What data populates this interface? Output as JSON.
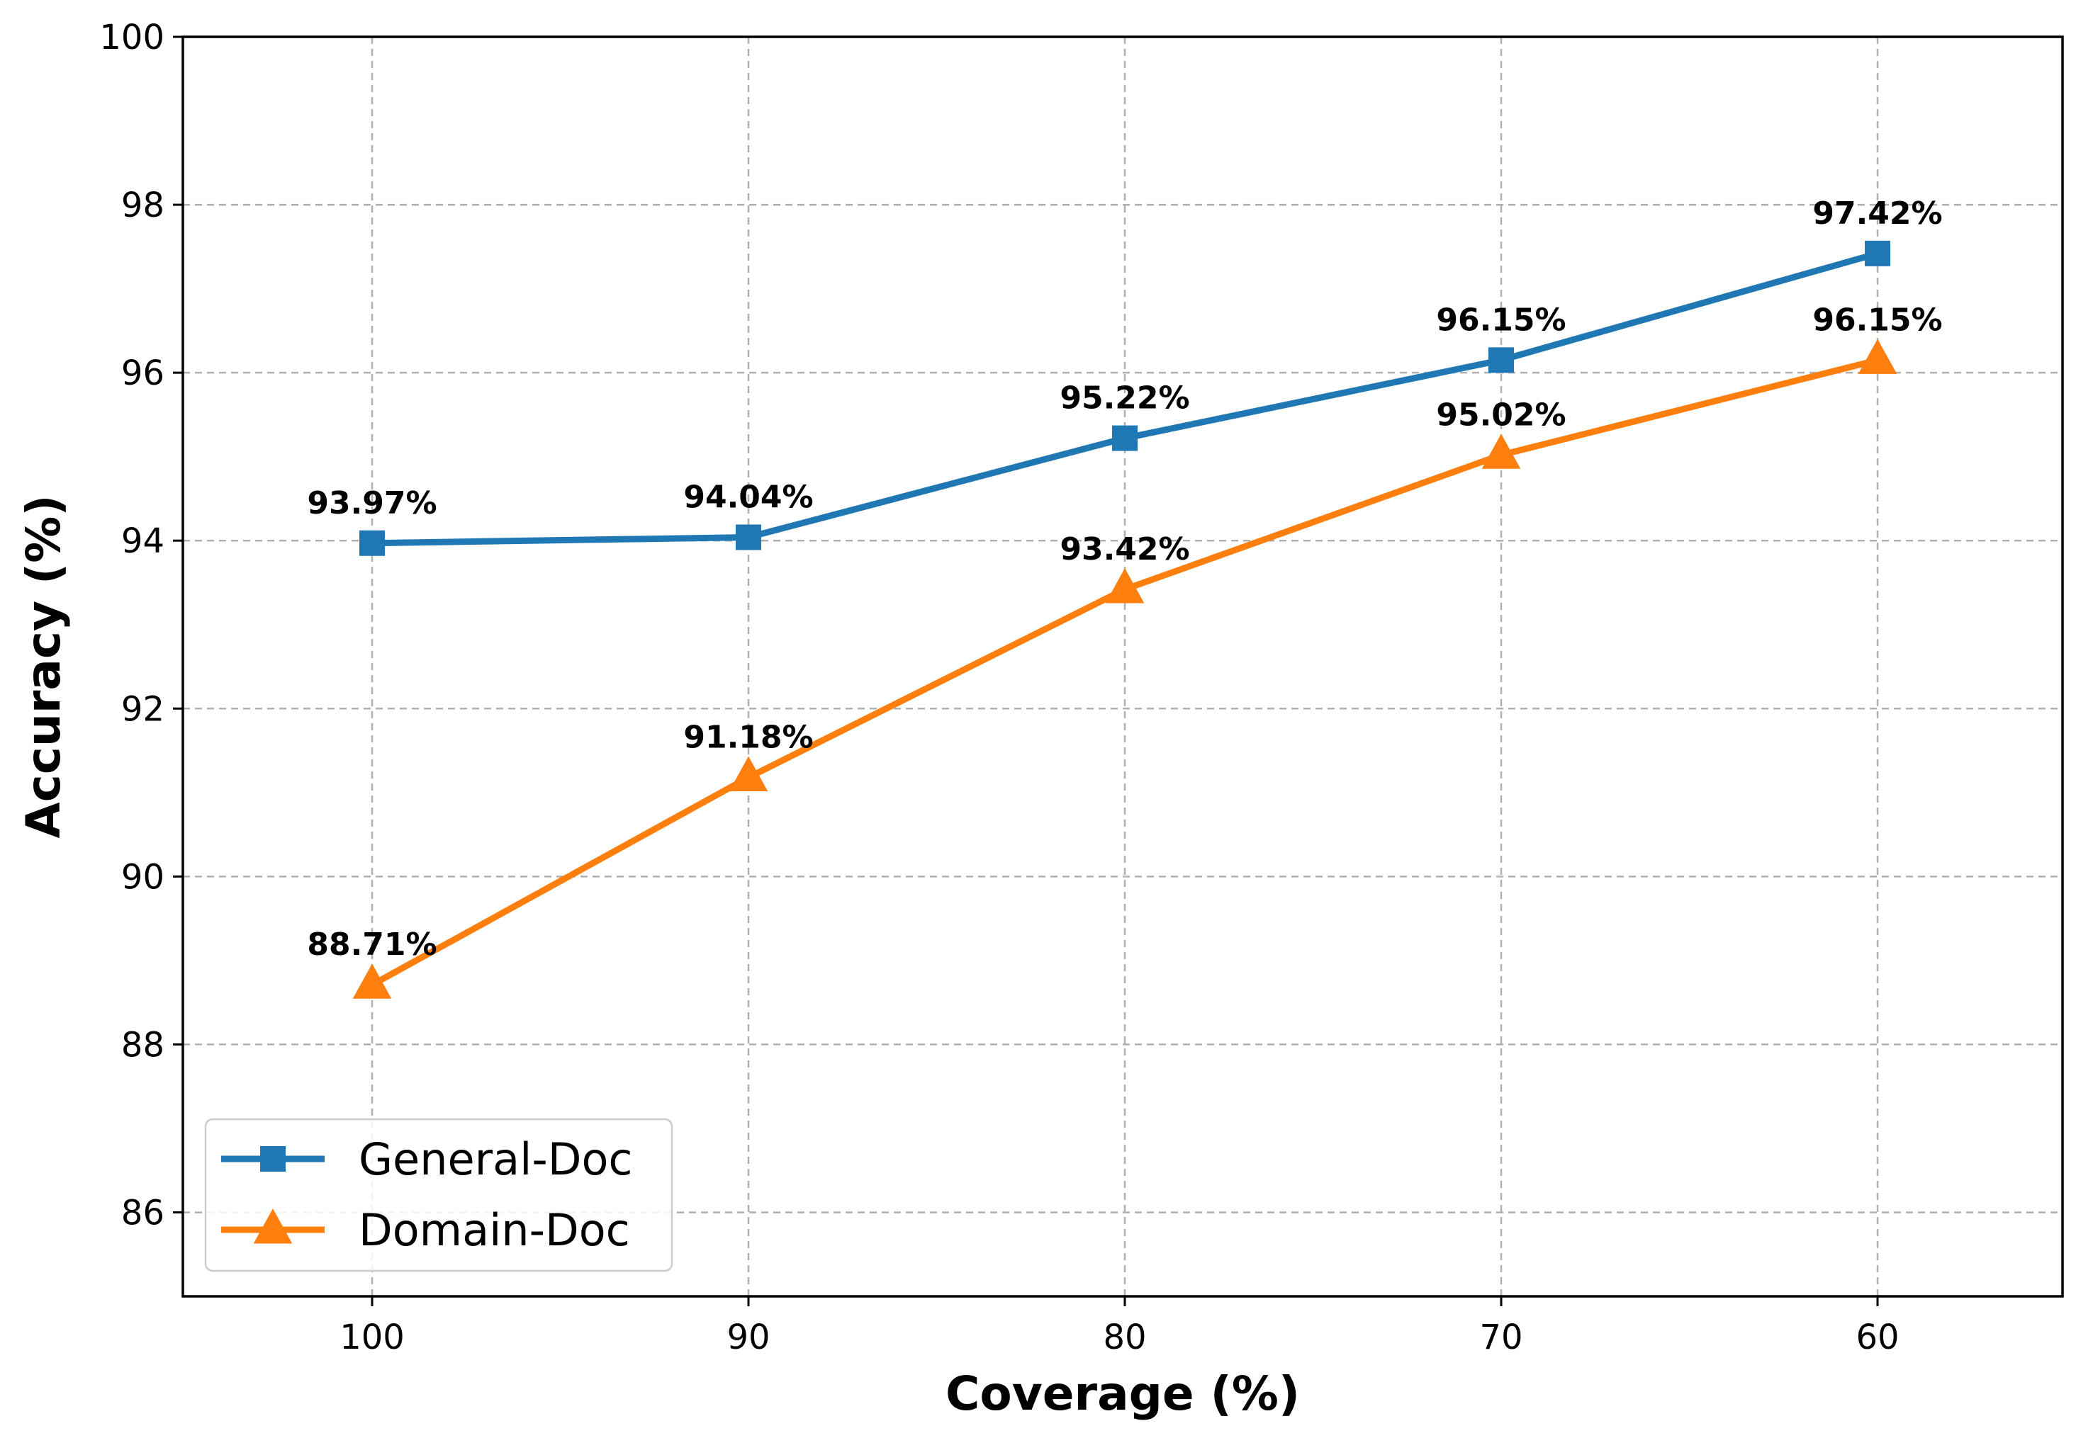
{
  "chart_data": {
    "type": "line",
    "title": "",
    "xlabel": "Coverage (%)",
    "ylabel": "Accuracy (%)",
    "categories": [
      "100",
      "90",
      "80",
      "70",
      "60"
    ],
    "x": [
      100,
      90,
      80,
      70,
      60
    ],
    "ylim": [
      85,
      100
    ],
    "yticks": [
      "86",
      "88",
      "90",
      "92",
      "94",
      "96",
      "98",
      "100"
    ],
    "ytick_values": [
      86,
      88,
      90,
      92,
      94,
      96,
      98,
      100
    ],
    "grid": true,
    "legend_position": "bottom-left",
    "series": [
      {
        "name": "General-Doc",
        "color": "#1f77b4",
        "marker": "square",
        "values": [
          93.97,
          94.04,
          95.22,
          96.15,
          97.42
        ],
        "labels": [
          "93.97%",
          "94.04%",
          "95.22%",
          "96.15%",
          "97.42%"
        ]
      },
      {
        "name": "Domain-Doc",
        "color": "#ff7f0e",
        "marker": "triangle",
        "values": [
          88.71,
          91.18,
          93.42,
          95.02,
          96.15
        ],
        "labels": [
          "88.71%",
          "91.18%",
          "93.42%",
          "95.02%",
          "96.15%"
        ]
      }
    ]
  }
}
